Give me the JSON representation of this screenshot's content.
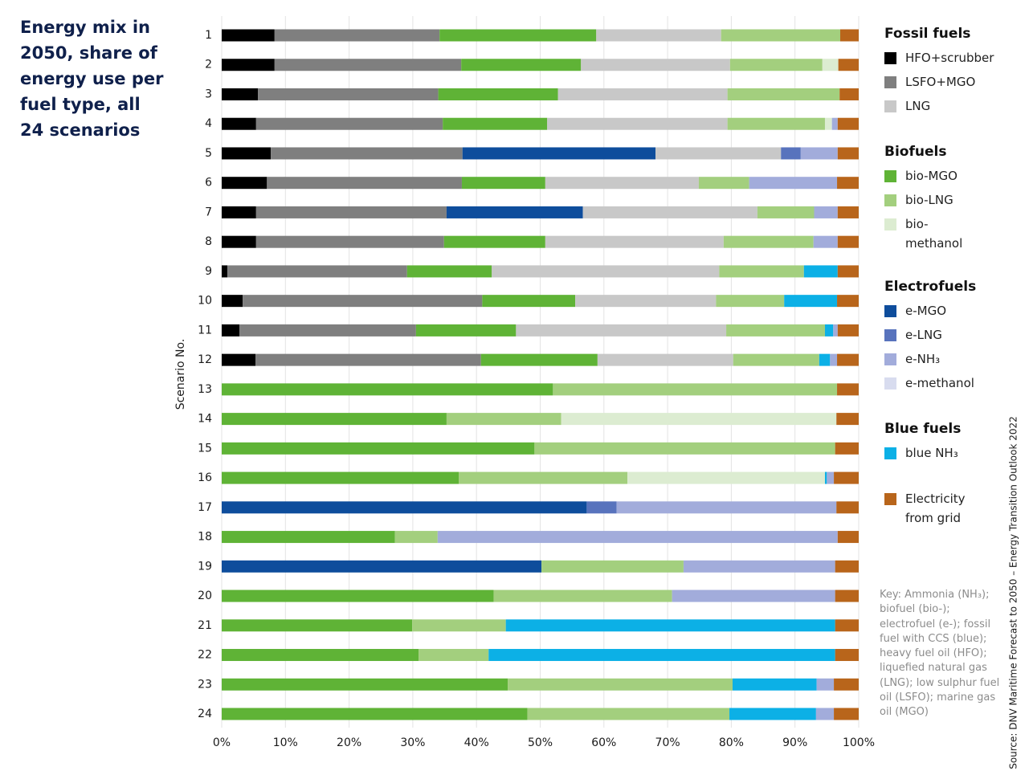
{
  "chart_data": {
    "type": "stacked-bar-horizontal",
    "title": "Energy mix in 2050, share of energy use per fuel type, all 24 scenarios",
    "y_label": "Scenario No.",
    "source": "Source: DNV Maritime Forecast to 2050 – Energy Transition Outlook 2022",
    "key_note": "Key: Ammonia (NH₃); biofuel (bio-); electrofuel (e-); fossil fuel with CCS (blue); heavy fuel oil (HFO); liquefied natural gas (LNG); low sulphur fuel oil (LSFO); marine gas oil (MGO)",
    "categories": [
      "1",
      "2",
      "3",
      "4",
      "5",
      "6",
      "7",
      "8",
      "9",
      "10",
      "11",
      "12",
      "13",
      "14",
      "15",
      "16",
      "17",
      "18",
      "19",
      "20",
      "21",
      "22",
      "23",
      "24"
    ],
    "xlim": [
      0,
      100
    ],
    "xticks": [
      {
        "value": 0,
        "label": "0%"
      },
      {
        "value": 10,
        "label": "10%"
      },
      {
        "value": 20,
        "label": "20%"
      },
      {
        "value": 30,
        "label": "30%"
      },
      {
        "value": 40,
        "label": "40%"
      },
      {
        "value": 50,
        "label": "50%"
      },
      {
        "value": 60,
        "label": "60%"
      },
      {
        "value": 70,
        "label": "70%"
      },
      {
        "value": 80,
        "label": "80%"
      },
      {
        "value": 90,
        "label": "90%"
      },
      {
        "value": 100,
        "label": "100%"
      }
    ],
    "grid": true,
    "legend_groups": [
      {
        "title": "Fossil fuels",
        "series": [
          {
            "name": "HFO+scrubber",
            "color": "#000000",
            "values": [
              8.3,
              8.3,
              5.7,
              5.4,
              7.7,
              7.1,
              5.4,
              5.4,
              0.9,
              3.3,
              2.8,
              5.3,
              0,
              0,
              0,
              0,
              0,
              0,
              0,
              0,
              0,
              0,
              0,
              0
            ]
          },
          {
            "name": "LSFO+MGO",
            "color": "#7f7f7f",
            "values": [
              25.9,
              29.3,
              28.3,
              29.3,
              30.1,
              30.6,
              29.9,
              29.5,
              28.2,
              37.6,
              27.7,
              35.4,
              0,
              0,
              0,
              0,
              0,
              0,
              0,
              0,
              0,
              0,
              0,
              0
            ]
          },
          {
            "name": "LNG",
            "color": "#c8c8c8",
            "values": [
              19.6,
              23.4,
              26.6,
              28.3,
              19.7,
              24.1,
              27.4,
              28.0,
              35.7,
              22.1,
              33.0,
              21.3,
              0,
              0,
              0,
              0,
              0,
              0,
              0,
              0,
              0,
              0,
              0,
              0
            ]
          }
        ]
      },
      {
        "title": "Biofuels",
        "series": [
          {
            "name": "bio-MGO",
            "color": "#5fb336",
            "values": [
              24.6,
              18.8,
              18.8,
              16.4,
              0,
              13.1,
              0,
              15.9,
              13.3,
              14.6,
              15.7,
              18.3,
              52.0,
              35.3,
              49.1,
              37.2,
              0,
              27.2,
              0,
              42.7,
              29.9,
              30.9,
              44.9,
              48.0
            ]
          },
          {
            "name": "bio-LNG",
            "color": "#a3cf7e",
            "values": [
              18.7,
              14.5,
              17.6,
              15.3,
              0,
              7.9,
              8.9,
              14.1,
              13.3,
              10.7,
              15.5,
              13.5,
              44.6,
              18.0,
              47.2,
              26.5,
              0,
              6.7,
              22.3,
              28.0,
              14.7,
              11.0,
              35.3,
              31.7
            ]
          },
          {
            "name": "bio-methanol",
            "color": "#dcecd1",
            "values": [
              0,
              2.5,
              0,
              1.1,
              0,
              0,
              0,
              0,
              0,
              0,
              0,
              0,
              0,
              43.2,
              0,
              31.0,
              0,
              0,
              0,
              0,
              0,
              0,
              0,
              0
            ]
          }
        ]
      },
      {
        "title": "Electrofuels",
        "series": [
          {
            "name": "e-MGO",
            "color": "#0e4d9c",
            "values": [
              0,
              0,
              0,
              0,
              30.3,
              0,
              21.4,
              0,
              0,
              0,
              0,
              0,
              0,
              0,
              0,
              0,
              57.3,
              0,
              50.2,
              0,
              0,
              0,
              0,
              0
            ]
          },
          {
            "name": "e-LNG",
            "color": "#5873bd",
            "values": [
              0,
              0,
              0,
              0,
              3.1,
              0,
              0,
              0,
              0,
              0,
              0,
              0,
              0,
              0,
              0,
              0,
              4.7,
              0,
              0,
              0,
              0,
              0,
              0,
              0
            ]
          },
          {
            "name": "e-NH₃",
            "color": "#a2acdb",
            "values": [
              0,
              0,
              0,
              0.9,
              5.8,
              13.8,
              3.7,
              3.8,
              0,
              0,
              0.7,
              1.1,
              0,
              0,
              0,
              1.1,
              34.5,
              62.8,
              23.8,
              25.6,
              0,
              0,
              2.7,
              2.8
            ]
          },
          {
            "name": "e-methanol",
            "color": "#d8dcef",
            "values": [
              0,
              0,
              0,
              0,
              0,
              0,
              0,
              0,
              0,
              0,
              0,
              0,
              0,
              0,
              0,
              0,
              0,
              0,
              0,
              0,
              0,
              0,
              0,
              0
            ]
          }
        ]
      },
      {
        "title": "Blue fuels",
        "series": [
          {
            "name": "blue NH₃",
            "color": "#0cb0e6",
            "values": [
              0,
              0,
              0,
              0,
              0,
              0,
              0,
              0,
              5.3,
              8.3,
              1.3,
              1.7,
              0,
              0,
              0,
              0.3,
              0,
              0,
              0,
              0,
              51.7,
              54.4,
              13.2,
              13.6
            ]
          }
        ]
      },
      {
        "series": [
          {
            "name": "Electricity from grid",
            "color": "#b8651b",
            "values": [
              2.9,
              3.2,
              3.0,
              3.3,
              3.3,
              3.4,
              3.3,
              3.3,
              3.3,
              3.4,
              3.3,
              3.4,
              3.4,
              3.5,
              3.7,
              3.9,
              3.5,
              3.3,
              3.7,
              3.7,
              3.7,
              3.7,
              3.9,
              3.9
            ]
          }
        ]
      }
    ]
  }
}
